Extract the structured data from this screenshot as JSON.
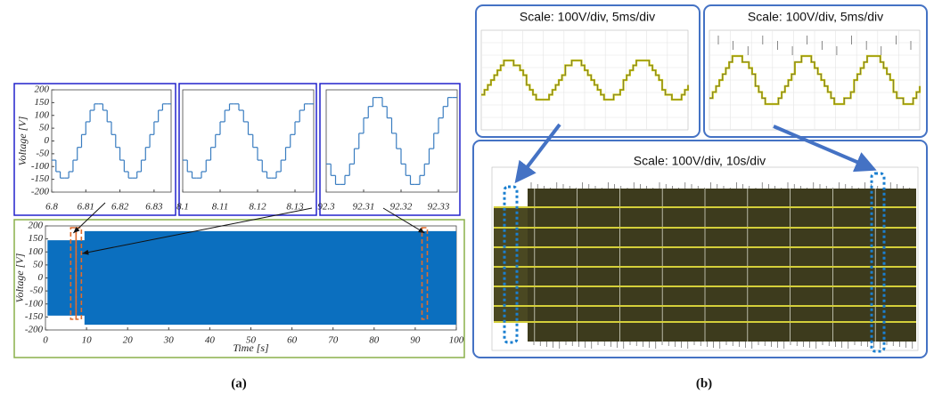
{
  "chart_data": [
    {
      "type": "step",
      "xlim": [
        6.8,
        6.835
      ],
      "xticks": [
        6.8,
        6.81,
        6.82,
        6.83
      ],
      "ylim": [
        -200,
        200
      ],
      "yticks": [
        -200,
        -150,
        -100,
        -50,
        0,
        50,
        100,
        150,
        200
      ],
      "ylabel": "Voltage [V]",
      "color": "#3a7dc0",
      "x": [
        6.8,
        6.80125,
        6.8025,
        6.80375,
        6.805,
        6.80625,
        6.8075,
        6.80875,
        6.81,
        6.81125,
        6.8125,
        6.81375,
        6.815,
        6.81625,
        6.8175,
        6.81875,
        6.82,
        6.82125,
        6.8225,
        6.82375,
        6.825,
        6.82625,
        6.8275,
        6.82875,
        6.83,
        6.83125,
        6.8325,
        6.83375
      ],
      "values": [
        -75,
        -120,
        -145,
        -145,
        -120,
        -75,
        -25,
        25,
        75,
        120,
        145,
        145,
        120,
        75,
        25,
        -25,
        -75,
        -120,
        -145,
        -145,
        -120,
        -75,
        -25,
        25,
        75,
        120,
        145,
        145
      ]
    },
    {
      "type": "step",
      "xlim": [
        8.1,
        8.135
      ],
      "xticks": [
        8.1,
        8.11,
        8.12,
        8.13
      ],
      "ylim": [
        -200,
        200
      ],
      "color": "#3a7dc0",
      "x": [
        8.1,
        8.10125,
        8.1025,
        8.10375,
        8.105,
        8.10625,
        8.1075,
        8.10875,
        8.11,
        8.11125,
        8.1125,
        8.11375,
        8.115,
        8.11625,
        8.1175,
        8.11875,
        8.12,
        8.12125,
        8.1225,
        8.12375,
        8.125,
        8.12625,
        8.1275,
        8.12875,
        8.13,
        8.13125,
        8.1325,
        8.13375
      ],
      "values": [
        -75,
        -120,
        -145,
        -145,
        -120,
        -75,
        -25,
        25,
        75,
        120,
        145,
        145,
        120,
        75,
        25,
        -25,
        -75,
        -120,
        -145,
        -145,
        -120,
        -75,
        -25,
        25,
        75,
        120,
        145,
        145
      ]
    },
    {
      "type": "step",
      "xlim": [
        92.3,
        92.335
      ],
      "xticks": [
        92.3,
        92.31,
        92.32,
        92.33
      ],
      "ylim": [
        -200,
        200
      ],
      "color": "#3a7dc0",
      "x": [
        92.3,
        92.30125,
        92.3025,
        92.30375,
        92.305,
        92.30625,
        92.3075,
        92.30875,
        92.31,
        92.31125,
        92.3125,
        92.31375,
        92.315,
        92.31625,
        92.3175,
        92.31875,
        92.32,
        92.32125,
        92.3225,
        92.32375,
        92.325,
        92.32625,
        92.3275,
        92.32875,
        92.33,
        92.33125,
        92.3325,
        92.33375
      ],
      "values": [
        -90,
        -135,
        -170,
        -170,
        -135,
        -90,
        -30,
        30,
        90,
        135,
        170,
        170,
        135,
        90,
        30,
        -30,
        -90,
        -135,
        -170,
        -170,
        -135,
        -90,
        -30,
        30,
        90,
        135,
        170,
        170
      ]
    },
    {
      "type": "band",
      "xlim": [
        0,
        100
      ],
      "xticks": [
        0,
        10,
        20,
        30,
        40,
        50,
        60,
        70,
        80,
        90,
        100
      ],
      "ylim": [
        -200,
        200
      ],
      "yticks": [
        -200,
        -150,
        -100,
        -50,
        0,
        50,
        100,
        150,
        200
      ],
      "xlabel": "Time [s]",
      "ylabel": "Voltage [V]",
      "color": "#0b6fbf",
      "x": [
        0.5,
        9.5,
        9.5,
        100
      ],
      "upper": [
        145,
        145,
        180,
        180
      ],
      "lower": [
        -145,
        -145,
        -180,
        -180
      ]
    }
  ],
  "scope_labels": [
    "Scale: 100V/div, 5ms/div",
    "Scale: 100V/div, 5ms/div",
    "Scale: 100V/div, 10s/div"
  ],
  "captions": [
    "(a)",
    "(b)"
  ]
}
